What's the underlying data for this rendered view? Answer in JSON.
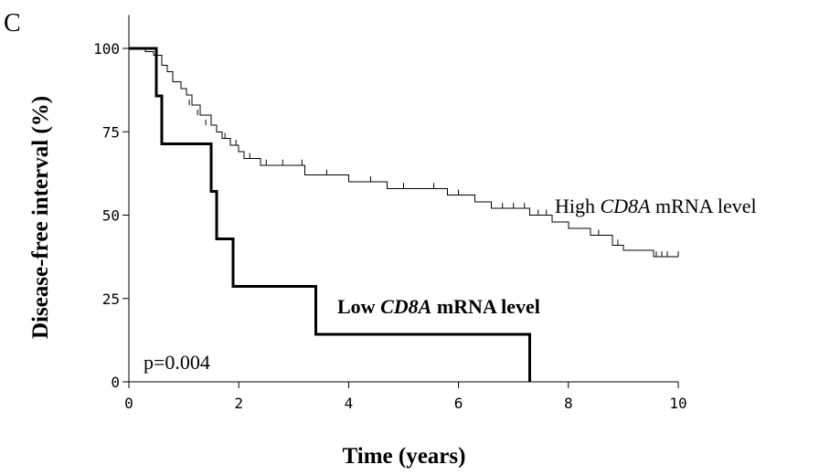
{
  "panel_label": "C",
  "chart_data": {
    "type": "line",
    "subtype": "kaplan-meier",
    "xlabel": "Time (years)",
    "ylabel": "Disease-free interval (%)",
    "xlim": [
      0,
      10
    ],
    "ylim": [
      0,
      110
    ],
    "xticks": [
      0,
      2,
      4,
      6,
      8,
      10
    ],
    "yticks": [
      0,
      25,
      50,
      75,
      100
    ],
    "grid": false,
    "annotation": "p=0.004",
    "series": [
      {
        "name": "High CD8A mRNA level",
        "label_parts": [
          "High ",
          "CD8A",
          " mRNA level"
        ],
        "color": "#000000",
        "steps": [
          [
            0,
            100
          ],
          [
            0.3,
            99
          ],
          [
            0.45,
            98
          ],
          [
            0.6,
            95
          ],
          [
            0.7,
            93
          ],
          [
            0.8,
            90
          ],
          [
            0.95,
            88
          ],
          [
            1.05,
            86
          ],
          [
            1.15,
            83
          ],
          [
            1.3,
            80
          ],
          [
            1.5,
            77
          ],
          [
            1.6,
            75
          ],
          [
            1.7,
            73
          ],
          [
            1.85,
            71
          ],
          [
            2.0,
            69
          ],
          [
            2.1,
            67
          ],
          [
            2.4,
            65
          ],
          [
            3.2,
            62
          ],
          [
            4.0,
            60
          ],
          [
            4.7,
            58
          ],
          [
            5.8,
            56
          ],
          [
            6.3,
            54
          ],
          [
            6.6,
            52
          ],
          [
            7.3,
            50
          ],
          [
            7.7,
            48
          ],
          [
            8.0,
            46
          ],
          [
            8.4,
            44
          ],
          [
            8.8,
            41
          ],
          [
            9.0,
            39.5
          ],
          [
            9.55,
            37.5
          ],
          [
            10.0,
            37.5
          ]
        ],
        "censored": [
          [
            1.1,
            83
          ],
          [
            1.25,
            80
          ],
          [
            1.4,
            77
          ],
          [
            1.75,
            73
          ],
          [
            1.95,
            71
          ],
          [
            2.2,
            67
          ],
          [
            2.5,
            65
          ],
          [
            2.8,
            65
          ],
          [
            3.15,
            65
          ],
          [
            3.6,
            62
          ],
          [
            4.4,
            60
          ],
          [
            5.0,
            58
          ],
          [
            5.55,
            58
          ],
          [
            6.0,
            56
          ],
          [
            6.8,
            52
          ],
          [
            7.0,
            52
          ],
          [
            7.2,
            52
          ],
          [
            7.45,
            50
          ],
          [
            7.6,
            50
          ],
          [
            8.55,
            44
          ],
          [
            8.9,
            41
          ],
          [
            9.6,
            37.5
          ],
          [
            9.7,
            37.5
          ],
          [
            9.8,
            37.5
          ],
          [
            10.0,
            37.5
          ]
        ]
      },
      {
        "name": "Low CD8A mRNA level",
        "label_parts": [
          "Low ",
          "CD8A",
          " mRNA level"
        ],
        "color": "#000000",
        "steps": [
          [
            0,
            100
          ],
          [
            0.5,
            85.7
          ],
          [
            0.6,
            71.4
          ],
          [
            1.5,
            57.1
          ],
          [
            1.6,
            42.9
          ],
          [
            1.9,
            28.6
          ],
          [
            3.4,
            14.3
          ],
          [
            7.3,
            0
          ]
        ],
        "censored": []
      }
    ]
  }
}
